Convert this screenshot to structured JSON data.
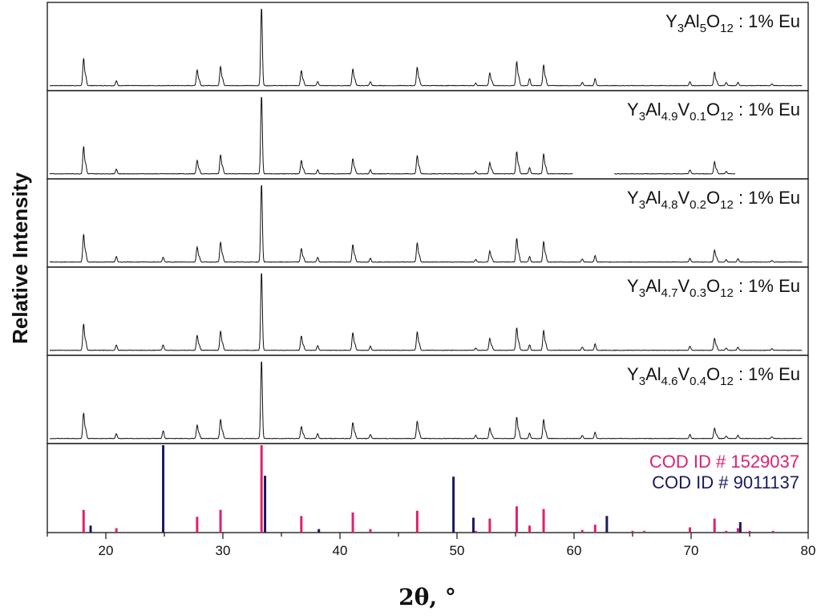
{
  "chart_data": {
    "type": "line",
    "xlabel": "2θ, °",
    "ylabel": "Relative Intensity",
    "xlim": [
      15,
      80
    ],
    "x_ticks": [
      20,
      30,
      40,
      50,
      60,
      70,
      80
    ],
    "grid": false,
    "peak_positions": [
      18.1,
      20.9,
      24.9,
      27.8,
      29.8,
      33.3,
      36.7,
      38.1,
      41.1,
      42.6,
      46.6,
      51.6,
      52.8,
      55.1,
      56.2,
      57.4,
      60.7,
      61.8,
      69.9,
      72.0,
      73.0,
      74.0,
      76.9
    ],
    "series": [
      {
        "label_parts": [
          [
            "Y",
            ""
          ],
          [
            "3",
            "sub"
          ],
          [
            "Al",
            ""
          ],
          [
            "5",
            "sub"
          ],
          [
            "O",
            ""
          ],
          [
            "12",
            "sub"
          ],
          [
            " : 1% Eu",
            ""
          ]
        ],
        "peaks": [
          0.34,
          0.06,
          0.0,
          0.2,
          0.24,
          1.0,
          0.19,
          0.05,
          0.21,
          0.05,
          0.23,
          0.03,
          0.16,
          0.3,
          0.09,
          0.26,
          0.04,
          0.09,
          0.05,
          0.17,
          0.04,
          0.04,
          0.02
        ],
        "gap": null
      },
      {
        "label_parts": [
          [
            "Y",
            ""
          ],
          [
            "3",
            "sub"
          ],
          [
            "Al",
            ""
          ],
          [
            "4.9",
            "sub"
          ],
          [
            "V",
            ""
          ],
          [
            "0.1",
            "sub"
          ],
          [
            "O",
            ""
          ],
          [
            "12",
            "sub"
          ],
          [
            " : 1% Eu",
            ""
          ]
        ],
        "peaks": [
          0.34,
          0.06,
          0.0,
          0.17,
          0.24,
          1.0,
          0.17,
          0.05,
          0.19,
          0.05,
          0.23,
          0.03,
          0.14,
          0.28,
          0.08,
          0.25,
          0.0,
          0.0,
          0.05,
          0.15,
          0.03,
          0.0,
          0.0
        ],
        "gap": [
          59.9,
          63.4
        ],
        "end": 73.8
      },
      {
        "label_parts": [
          [
            "Y",
            ""
          ],
          [
            "3",
            "sub"
          ],
          [
            "Al",
            ""
          ],
          [
            "4.8",
            "sub"
          ],
          [
            "V",
            ""
          ],
          [
            "0.2",
            "sub"
          ],
          [
            "O",
            ""
          ],
          [
            "12",
            "sub"
          ],
          [
            " : 1% Eu",
            ""
          ]
        ],
        "peaks": [
          0.35,
          0.07,
          0.06,
          0.19,
          0.25,
          1.0,
          0.17,
          0.06,
          0.22,
          0.05,
          0.24,
          0.03,
          0.14,
          0.3,
          0.07,
          0.26,
          0.04,
          0.08,
          0.05,
          0.15,
          0.03,
          0.04,
          0.02
        ],
        "gap": null
      },
      {
        "label_parts": [
          [
            "Y",
            ""
          ],
          [
            "3",
            "sub"
          ],
          [
            "Al",
            ""
          ],
          [
            "4.7",
            "sub"
          ],
          [
            "V",
            ""
          ],
          [
            "0.3",
            "sub"
          ],
          [
            "O",
            ""
          ],
          [
            "12",
            "sub"
          ],
          [
            " : 1% Eu",
            ""
          ]
        ],
        "peaks": [
          0.33,
          0.07,
          0.07,
          0.19,
          0.24,
          1.0,
          0.18,
          0.06,
          0.22,
          0.05,
          0.23,
          0.03,
          0.15,
          0.28,
          0.07,
          0.25,
          0.04,
          0.08,
          0.05,
          0.15,
          0.03,
          0.04,
          0.02
        ],
        "gap": null
      },
      {
        "label_parts": [
          [
            "Y",
            ""
          ],
          [
            "3",
            "sub"
          ],
          [
            "Al",
            ""
          ],
          [
            "4.6",
            "sub"
          ],
          [
            "V",
            ""
          ],
          [
            "0.4",
            "sub"
          ],
          [
            "O",
            ""
          ],
          [
            "12",
            "sub"
          ],
          [
            " : 1% Eu",
            ""
          ]
        ],
        "peaks": [
          0.32,
          0.06,
          0.1,
          0.17,
          0.24,
          1.0,
          0.15,
          0.06,
          0.2,
          0.05,
          0.22,
          0.04,
          0.13,
          0.27,
          0.07,
          0.24,
          0.04,
          0.08,
          0.05,
          0.13,
          0.03,
          0.04,
          0.02
        ],
        "gap": null
      }
    ],
    "reference": {
      "legend": [
        {
          "name": "COD ID # 1529037",
          "color": "#e0206e"
        },
        {
          "name": "COD ID # 9011137",
          "color": "#1a1a5e"
        }
      ],
      "cod_1529037": {
        "x": [
          18.1,
          20.9,
          27.8,
          29.8,
          33.3,
          36.7,
          41.1,
          42.6,
          46.6,
          51.6,
          52.8,
          55.1,
          56.2,
          57.4,
          60.7,
          61.8,
          65.0,
          66.0,
          69.9,
          72.0,
          73.0,
          74.0,
          75.0,
          77.0
        ],
        "y": [
          0.26,
          0.05,
          0.18,
          0.26,
          1.0,
          0.19,
          0.23,
          0.04,
          0.25,
          0.02,
          0.16,
          0.3,
          0.08,
          0.27,
          0.03,
          0.09,
          0.02,
          0.02,
          0.06,
          0.16,
          0.02,
          0.05,
          0.02,
          0.02
        ]
      },
      "cod_9011137": {
        "x": [
          18.7,
          24.9,
          33.6,
          38.2,
          49.7,
          51.4,
          62.8,
          74.2
        ],
        "y": [
          0.08,
          1.0,
          0.65,
          0.04,
          0.64,
          0.17,
          0.19,
          0.12
        ]
      }
    }
  }
}
